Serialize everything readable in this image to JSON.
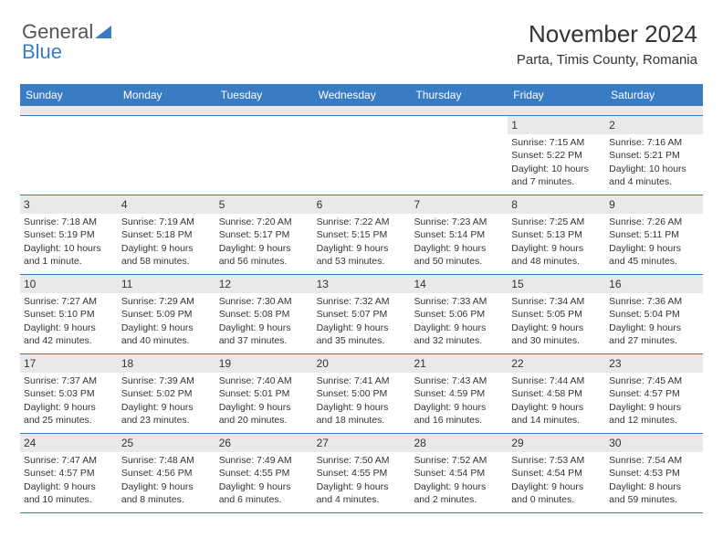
{
  "brand": {
    "part1": "General",
    "part2": "Blue"
  },
  "header": {
    "month_title": "November 2024",
    "location": "Parta, Timis County, Romania"
  },
  "style": {
    "accent_color": "#3a7cc4",
    "header_bg": "#e9e9e9",
    "text_color": "#333333",
    "background": "#ffffff",
    "title_fontsize": 26,
    "location_fontsize": 15,
    "weekday_fontsize": 12,
    "cell_fontsize": 10.5
  },
  "weekdays": [
    "Sunday",
    "Monday",
    "Tuesday",
    "Wednesday",
    "Thursday",
    "Friday",
    "Saturday"
  ],
  "weeks": [
    [
      null,
      null,
      null,
      null,
      null,
      {
        "n": "1",
        "sunrise": "7:15 AM",
        "sunset": "5:22 PM",
        "daylight": "10 hours and 7 minutes."
      },
      {
        "n": "2",
        "sunrise": "7:16 AM",
        "sunset": "5:21 PM",
        "daylight": "10 hours and 4 minutes."
      }
    ],
    [
      {
        "n": "3",
        "sunrise": "7:18 AM",
        "sunset": "5:19 PM",
        "daylight": "10 hours and 1 minute."
      },
      {
        "n": "4",
        "sunrise": "7:19 AM",
        "sunset": "5:18 PM",
        "daylight": "9 hours and 58 minutes."
      },
      {
        "n": "5",
        "sunrise": "7:20 AM",
        "sunset": "5:17 PM",
        "daylight": "9 hours and 56 minutes."
      },
      {
        "n": "6",
        "sunrise": "7:22 AM",
        "sunset": "5:15 PM",
        "daylight": "9 hours and 53 minutes."
      },
      {
        "n": "7",
        "sunrise": "7:23 AM",
        "sunset": "5:14 PM",
        "daylight": "9 hours and 50 minutes."
      },
      {
        "n": "8",
        "sunrise": "7:25 AM",
        "sunset": "5:13 PM",
        "daylight": "9 hours and 48 minutes."
      },
      {
        "n": "9",
        "sunrise": "7:26 AM",
        "sunset": "5:11 PM",
        "daylight": "9 hours and 45 minutes."
      }
    ],
    [
      {
        "n": "10",
        "sunrise": "7:27 AM",
        "sunset": "5:10 PM",
        "daylight": "9 hours and 42 minutes."
      },
      {
        "n": "11",
        "sunrise": "7:29 AM",
        "sunset": "5:09 PM",
        "daylight": "9 hours and 40 minutes."
      },
      {
        "n": "12",
        "sunrise": "7:30 AM",
        "sunset": "5:08 PM",
        "daylight": "9 hours and 37 minutes."
      },
      {
        "n": "13",
        "sunrise": "7:32 AM",
        "sunset": "5:07 PM",
        "daylight": "9 hours and 35 minutes."
      },
      {
        "n": "14",
        "sunrise": "7:33 AM",
        "sunset": "5:06 PM",
        "daylight": "9 hours and 32 minutes."
      },
      {
        "n": "15",
        "sunrise": "7:34 AM",
        "sunset": "5:05 PM",
        "daylight": "9 hours and 30 minutes."
      },
      {
        "n": "16",
        "sunrise": "7:36 AM",
        "sunset": "5:04 PM",
        "daylight": "9 hours and 27 minutes."
      }
    ],
    [
      {
        "n": "17",
        "sunrise": "7:37 AM",
        "sunset": "5:03 PM",
        "daylight": "9 hours and 25 minutes."
      },
      {
        "n": "18",
        "sunrise": "7:39 AM",
        "sunset": "5:02 PM",
        "daylight": "9 hours and 23 minutes."
      },
      {
        "n": "19",
        "sunrise": "7:40 AM",
        "sunset": "5:01 PM",
        "daylight": "9 hours and 20 minutes."
      },
      {
        "n": "20",
        "sunrise": "7:41 AM",
        "sunset": "5:00 PM",
        "daylight": "9 hours and 18 minutes."
      },
      {
        "n": "21",
        "sunrise": "7:43 AM",
        "sunset": "4:59 PM",
        "daylight": "9 hours and 16 minutes."
      },
      {
        "n": "22",
        "sunrise": "7:44 AM",
        "sunset": "4:58 PM",
        "daylight": "9 hours and 14 minutes."
      },
      {
        "n": "23",
        "sunrise": "7:45 AM",
        "sunset": "4:57 PM",
        "daylight": "9 hours and 12 minutes."
      }
    ],
    [
      {
        "n": "24",
        "sunrise": "7:47 AM",
        "sunset": "4:57 PM",
        "daylight": "9 hours and 10 minutes."
      },
      {
        "n": "25",
        "sunrise": "7:48 AM",
        "sunset": "4:56 PM",
        "daylight": "9 hours and 8 minutes."
      },
      {
        "n": "26",
        "sunrise": "7:49 AM",
        "sunset": "4:55 PM",
        "daylight": "9 hours and 6 minutes."
      },
      {
        "n": "27",
        "sunrise": "7:50 AM",
        "sunset": "4:55 PM",
        "daylight": "9 hours and 4 minutes."
      },
      {
        "n": "28",
        "sunrise": "7:52 AM",
        "sunset": "4:54 PM",
        "daylight": "9 hours and 2 minutes."
      },
      {
        "n": "29",
        "sunrise": "7:53 AM",
        "sunset": "4:54 PM",
        "daylight": "9 hours and 0 minutes."
      },
      {
        "n": "30",
        "sunrise": "7:54 AM",
        "sunset": "4:53 PM",
        "daylight": "8 hours and 59 minutes."
      }
    ]
  ],
  "labels": {
    "sunrise": "Sunrise:",
    "sunset": "Sunset:",
    "daylight": "Daylight:"
  }
}
